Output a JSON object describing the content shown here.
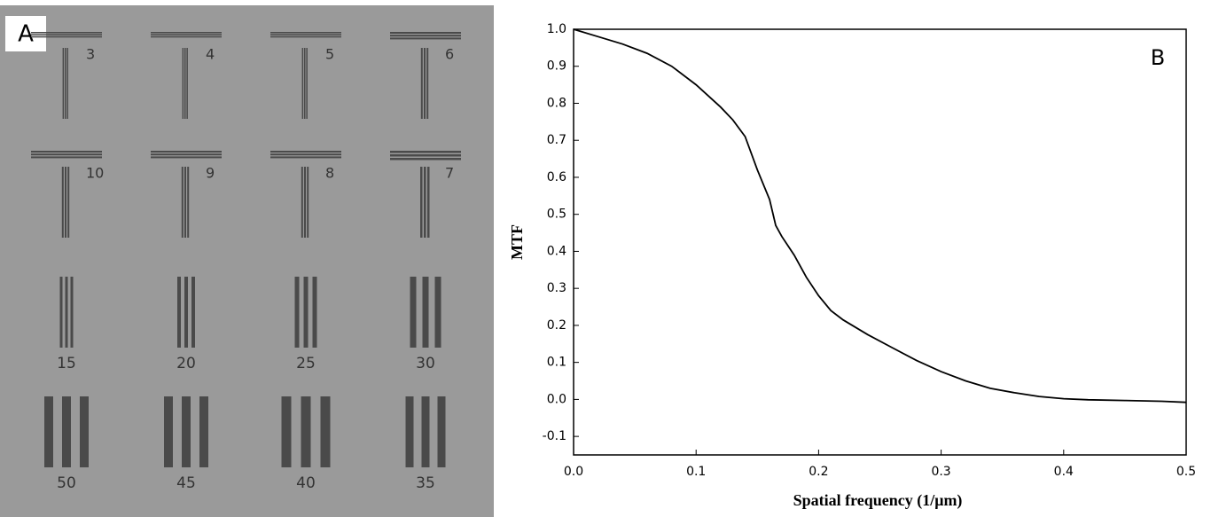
{
  "panel_a": {
    "label": "A",
    "targets": [
      "3",
      "4",
      "5",
      "6",
      "10",
      "9",
      "8",
      "7",
      "15",
      "20",
      "25",
      "30",
      "50",
      "45",
      "40",
      "35"
    ]
  },
  "chart_data": {
    "type": "line",
    "label": "B",
    "xlabel": "Spatial frequency (1/μm)",
    "ylabel": "MTF",
    "x": [
      0,
      0.02,
      0.04,
      0.06,
      0.08,
      0.1,
      0.12,
      0.13,
      0.14,
      0.15,
      0.16,
      0.165,
      0.17,
      0.18,
      0.19,
      0.2,
      0.21,
      0.22,
      0.24,
      0.26,
      0.28,
      0.3,
      0.32,
      0.34,
      0.36,
      0.38,
      0.4,
      0.42,
      0.45,
      0.48,
      0.5
    ],
    "values": [
      1.0,
      0.98,
      0.96,
      0.935,
      0.9,
      0.85,
      0.79,
      0.755,
      0.71,
      0.62,
      0.54,
      0.47,
      0.44,
      0.39,
      0.33,
      0.28,
      0.24,
      0.215,
      0.175,
      0.14,
      0.105,
      0.075,
      0.05,
      0.03,
      0.018,
      0.008,
      0.002,
      -0.001,
      -0.003,
      -0.005,
      -0.008
    ],
    "color": "#000000",
    "xlim": [
      0,
      0.5
    ],
    "xticks": [
      {
        "value": 0,
        "label": "0.0"
      },
      0.1,
      0.2,
      0.3,
      0.4,
      0.5
    ],
    "ylim": [
      -0.15,
      1.0
    ],
    "yticks": [
      -0.1,
      {
        "value": 0,
        "label": "0.0"
      },
      0.1,
      0.2,
      0.3,
      0.4,
      0.5,
      0.6,
      0.7,
      0.8,
      0.9,
      {
        "value": 1,
        "label": "1.0"
      }
    ],
    "grid": false
  }
}
